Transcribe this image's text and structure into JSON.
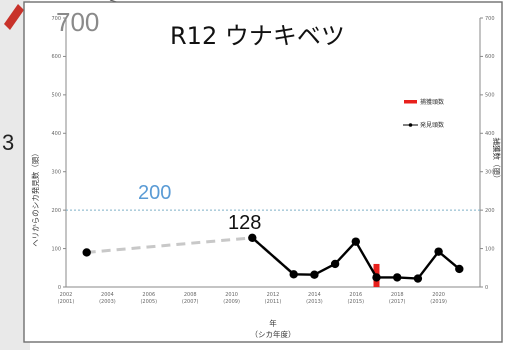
{
  "page": {
    "page_number": "3"
  },
  "chart_data": {
    "type": "line",
    "title": "R12 ウナキベツ",
    "xlabel": "年\n（シカ年度）",
    "ylabel": "ヘリからのシカ発見数（頭）",
    "y2label": "捕獲数（頭）",
    "ylim": [
      0,
      700
    ],
    "y2lim": [
      0,
      700
    ],
    "yticks": [
      "0",
      "100",
      "200",
      "300",
      "400",
      "500",
      "600",
      "700"
    ],
    "xlim": [
      2002,
      2022
    ],
    "xticks": [
      {
        "x": 2002,
        "top": "2002",
        "bottom": "(2001)"
      },
      {
        "x": 2004,
        "top": "2004",
        "bottom": "(2003)"
      },
      {
        "x": 2006,
        "top": "2006",
        "bottom": "(2005)"
      },
      {
        "x": 2008,
        "top": "2008",
        "bottom": "(2007)"
      },
      {
        "x": 2010,
        "top": "2010",
        "bottom": "(2009)"
      },
      {
        "x": 2012,
        "top": "2012",
        "bottom": "(2011)"
      },
      {
        "x": 2014,
        "top": "2014",
        "bottom": "(2013)"
      },
      {
        "x": 2016,
        "top": "2016",
        "bottom": "(2015)"
      },
      {
        "x": 2018,
        "top": "2018",
        "bottom": "(2017)"
      },
      {
        "x": 2020,
        "top": "2020",
        "bottom": "(2019)"
      }
    ],
    "series": [
      {
        "name": "発見頭数",
        "kind": "line",
        "color": "#000000",
        "x": [
          2011,
          2013,
          2014,
          2015,
          2016,
          2017,
          2018,
          2019,
          2020,
          2021
        ],
        "y": [
          128,
          33,
          32,
          60,
          118,
          25,
          25,
          22,
          92,
          47
        ]
      },
      {
        "name": "捕獲頭数",
        "kind": "bar",
        "color": "#e8201c",
        "x": [
          2017
        ],
        "y": [
          60
        ]
      }
    ],
    "gap_series": {
      "color": "#c8c8c8",
      "x": [
        2003,
        2011,
        2013
      ],
      "y": [
        90,
        128,
        33
      ]
    },
    "reference_line": {
      "y": 200,
      "color": "#7fb0c8",
      "style": "dotted"
    },
    "annotations": [
      {
        "text": "700",
        "role": "ymax-callout"
      },
      {
        "text": "200",
        "role": "reference-value",
        "color": "#5a9bd5"
      },
      {
        "text": "128",
        "role": "point-value"
      }
    ],
    "legend": {
      "position": "right",
      "items": [
        "捕獲頭数",
        "発見頭数"
      ]
    },
    "grid": false
  }
}
